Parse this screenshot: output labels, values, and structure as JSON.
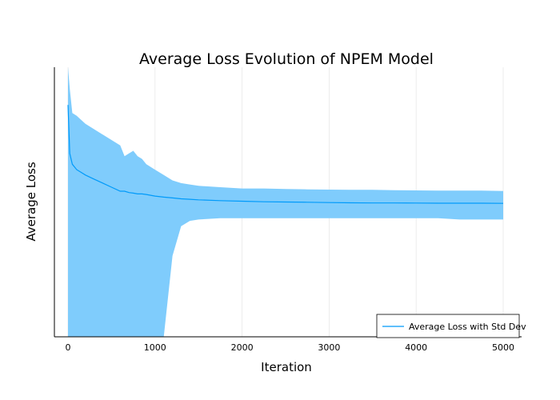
{
  "chart_data": {
    "type": "line",
    "title": "Average Loss Evolution of NPEM Model",
    "xlabel": "Iteration",
    "ylabel": "Average Loss",
    "xlim": [
      0,
      5000
    ],
    "x_ticks": [
      0,
      1000,
      2000,
      3000,
      4000,
      5000
    ],
    "x_tick_labels": [
      "0",
      "1000",
      "2000",
      "3000",
      "4000",
      "5000"
    ],
    "y_tick_labels": [],
    "ylim": [
      0,
      1
    ],
    "grid": true,
    "legend_position": "bottom-right",
    "colors": {
      "series": "#009AFA",
      "band": "#7FCCFC",
      "grid": "#e8e8e8",
      "axis": "#000000"
    },
    "series": [
      {
        "name": "Average Loss with Std Dev",
        "x": [
          0,
          20,
          50,
          100,
          150,
          200,
          300,
          400,
          500,
          600,
          650,
          700,
          750,
          800,
          850,
          900,
          1000,
          1100,
          1200,
          1300,
          1400,
          1500,
          1750,
          2000,
          2250,
          2500,
          2750,
          3000,
          3250,
          3500,
          3750,
          4000,
          4250,
          4500,
          4750,
          5000
        ],
        "mean": [
          0.86,
          0.68,
          0.64,
          0.62,
          0.61,
          0.6,
          0.585,
          0.57,
          0.555,
          0.54,
          0.54,
          0.535,
          0.533,
          0.53,
          0.53,
          0.528,
          0.522,
          0.518,
          0.515,
          0.512,
          0.51,
          0.508,
          0.505,
          0.503,
          0.501,
          0.5,
          0.499,
          0.498,
          0.497,
          0.4965,
          0.4965,
          0.496,
          0.4955,
          0.4955,
          0.4955,
          0.495
        ],
        "upper": [
          1.0,
          0.92,
          0.83,
          0.82,
          0.805,
          0.79,
          0.77,
          0.75,
          0.73,
          0.71,
          0.67,
          0.68,
          0.69,
          0.67,
          0.66,
          0.64,
          0.62,
          0.6,
          0.58,
          0.57,
          0.565,
          0.56,
          0.555,
          0.55,
          0.55,
          0.548,
          0.547,
          0.546,
          0.545,
          0.545,
          0.544,
          0.543,
          0.542,
          0.542,
          0.542,
          0.541
        ],
        "lower": [
          0.0,
          0.0,
          0.0,
          0.0,
          0.0,
          0.0,
          0.0,
          0.0,
          0.0,
          0.0,
          0.0,
          0.0,
          0.0,
          0.0,
          0.0,
          0.0,
          0.0,
          0.0,
          0.3,
          0.41,
          0.43,
          0.435,
          0.44,
          0.44,
          0.44,
          0.44,
          0.44,
          0.44,
          0.44,
          0.44,
          0.44,
          0.44,
          0.44,
          0.435,
          0.435,
          0.435
        ]
      }
    ]
  }
}
